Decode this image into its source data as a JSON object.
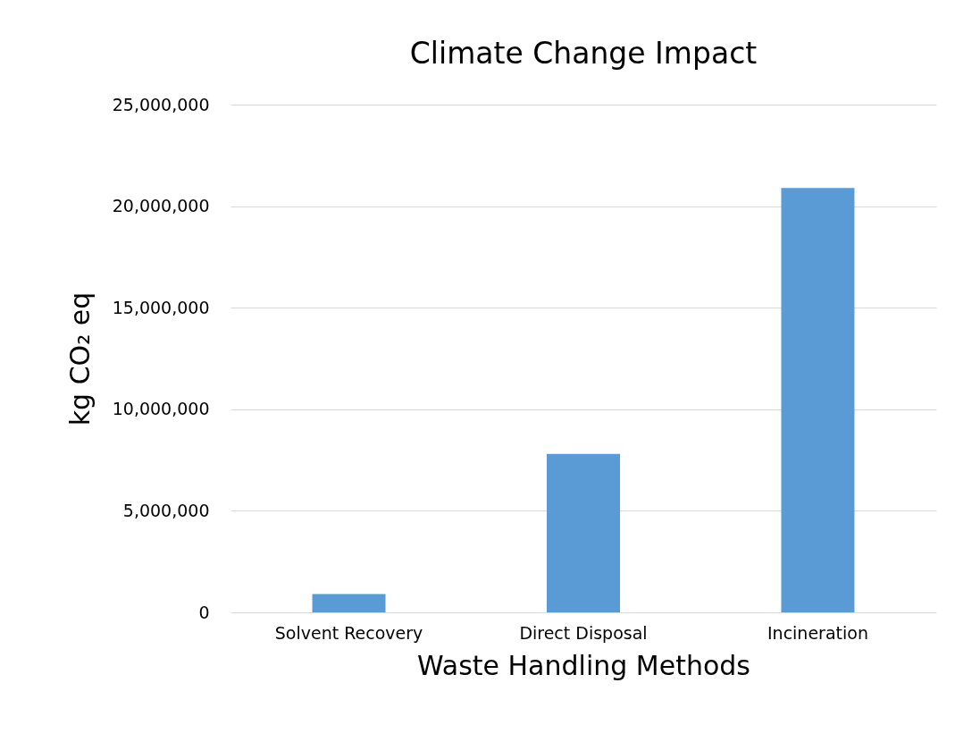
{
  "chart_data": {
    "type": "bar",
    "title": "Climate Change Impact",
    "xlabel": "Waste Handling Methods",
    "ylabel": "kg CO₂ eq",
    "categories": [
      "Solvent Recovery",
      "Direct Disposal",
      "Incineration"
    ],
    "values": [
      900000,
      7800000,
      20900000
    ],
    "color": "#5b9bd5",
    "ylim": [
      0,
      25000000
    ],
    "yticks": [
      {
        "value": 0,
        "label": "0"
      },
      {
        "value": 5000000,
        "label": "5,000,000"
      },
      {
        "value": 10000000,
        "label": "10,000,000"
      },
      {
        "value": 15000000,
        "label": "15,000,000"
      },
      {
        "value": 20000000,
        "label": "20,000,000"
      },
      {
        "value": 25000000,
        "label": "25,000,000"
      }
    ],
    "grid": "y"
  }
}
